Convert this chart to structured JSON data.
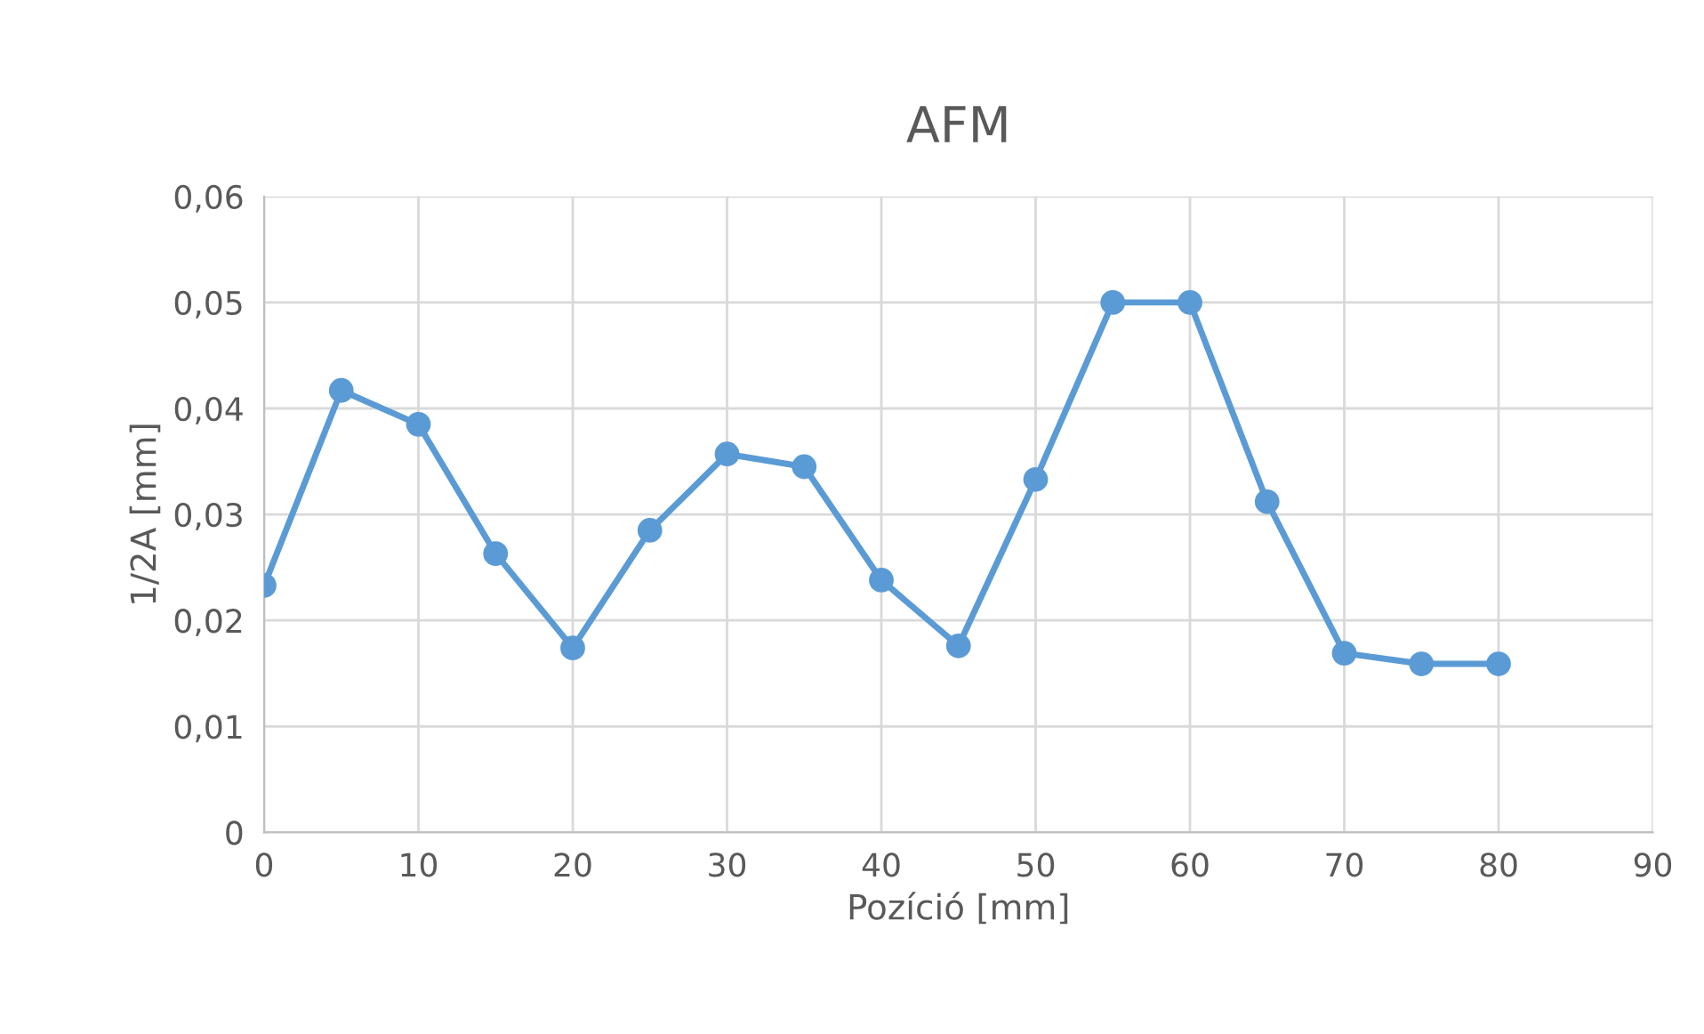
{
  "chart_data": {
    "type": "line",
    "title": "AFM",
    "xlabel": "Pozíció [mm]",
    "ylabel": "1/2A [mm]",
    "x": [
      0,
      5,
      10,
      15,
      20,
      25,
      30,
      35,
      40,
      45,
      50,
      55,
      60,
      65,
      70,
      75,
      80
    ],
    "series": [
      {
        "color": "#5b9bd5",
        "values": [
          0.0233,
          0.0417,
          0.0385,
          0.0263,
          0.0174,
          0.0285,
          0.0357,
          0.0345,
          0.0238,
          0.0176,
          0.0333,
          0.05,
          0.05,
          0.0312,
          0.0169,
          0.0159,
          0.0159
        ]
      }
    ],
    "xlim": [
      0,
      90
    ],
    "xticks": [
      0,
      10,
      20,
      30,
      40,
      50,
      60,
      70,
      80,
      90
    ],
    "ylim": [
      0,
      0.06
    ],
    "yticks": [
      {
        "value": 0,
        "label": "0"
      },
      {
        "value": 0.01,
        "label": "0,01"
      },
      {
        "value": 0.02,
        "label": "0,02"
      },
      {
        "value": 0.03,
        "label": "0,03"
      },
      {
        "value": 0.04,
        "label": "0,04"
      },
      {
        "value": 0.05,
        "label": "0,05"
      },
      {
        "value": 0.06,
        "label": "0,06"
      }
    ],
    "grid": true,
    "marker": "circle",
    "line_style": "solid",
    "legend": false
  }
}
